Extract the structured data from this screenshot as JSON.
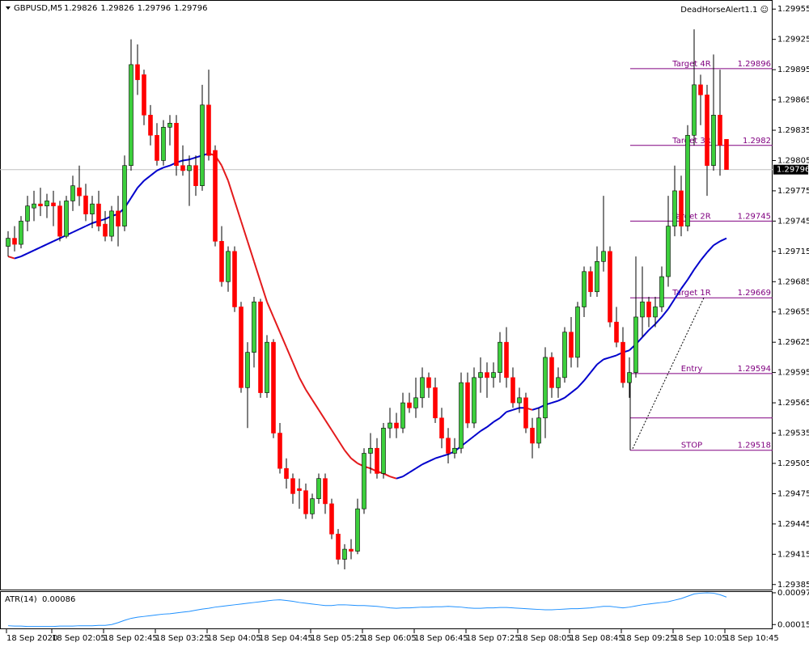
{
  "chart_data": {
    "type": "candlestick",
    "symbol": "GBPUSD,M5",
    "indicator_name": "DeadHorseAlert1.1 ☺",
    "categories": [
      "18 Sep 2020",
      null,
      null,
      null,
      null,
      null,
      null,
      "18 Sep 02:05",
      null,
      null,
      null,
      null,
      null,
      null,
      null,
      "18 Sep 02:45",
      null,
      null,
      null,
      null,
      null,
      null,
      null,
      "18 Sep 03:25",
      null,
      null,
      null,
      null,
      null,
      null,
      null,
      "18 Sep 04:05",
      null,
      null,
      null,
      null,
      null,
      null,
      null,
      "18 Sep 04:45",
      null,
      null,
      null,
      null,
      null,
      null,
      null,
      "18 Sep 05:25",
      null,
      null,
      null,
      null,
      null,
      null,
      null,
      "18 Sep 06:05",
      null,
      null,
      null,
      null,
      null,
      null,
      null,
      "18 Sep 06:45",
      null,
      null,
      null,
      null,
      null,
      null,
      null,
      "18 Sep 07:25",
      null,
      null,
      null,
      null,
      null,
      null,
      null,
      "18 Sep 08:05",
      null,
      null,
      null,
      null,
      null,
      null,
      null,
      "18 Sep 08:45",
      null,
      null,
      null,
      null,
      null,
      null,
      null,
      "18 Sep 09:25",
      null,
      null,
      null,
      null,
      null,
      null,
      null,
      "18 Sep 10:05",
      null,
      null,
      null,
      null,
      null,
      null,
      null,
      "18 Sep 10:45"
    ],
    "open": [
      1.2972,
      1.29728,
      1.29722,
      1.29745,
      1.29758,
      1.29762,
      1.2976,
      1.29763,
      1.2976,
      1.2973,
      1.29765,
      1.29778,
      1.2977,
      1.29752,
      1.29762,
      1.29742,
      1.2973,
      1.29755,
      1.2974,
      1.298,
      1.299,
      1.2989,
      1.2985,
      1.2983,
      1.29805,
      1.29838,
      1.29842,
      1.298,
      1.29795,
      1.298,
      1.2978,
      1.2986,
      1.29815,
      1.29725,
      1.29685,
      1.29715,
      1.2966,
      1.2958,
      1.29615,
      1.29665,
      1.29575,
      1.29625,
      1.29535,
      1.295,
      1.2949,
      1.2948,
      1.29478,
      1.29455,
      1.2947,
      1.2949,
      1.29465,
      1.29435,
      1.2941,
      1.2942,
      1.29418,
      1.2946,
      1.29515,
      1.2952,
      1.29495,
      1.2954,
      1.29545,
      1.2954,
      1.29565,
      1.2956,
      1.2957,
      1.2959,
      1.2958,
      1.2955,
      1.2953,
      1.29515,
      1.2952,
      1.29585,
      1.29545,
      1.2959,
      1.29595,
      1.2959,
      1.29595,
      1.29625,
      1.2959,
      1.29565,
      1.2957,
      1.2954,
      1.29525,
      1.2955,
      1.2961,
      1.2958,
      1.2959,
      1.29635,
      1.2961,
      1.2966,
      1.29695,
      1.29675,
      1.29705,
      1.29715,
      1.29645,
      1.29625,
      1.29585,
      1.29595,
      1.2965,
      1.29665,
      1.2965,
      1.2966,
      1.2969,
      1.2974,
      1.29775,
      1.2974,
      1.2983,
      1.2988,
      1.2987,
      1.298,
      1.2985,
      1.29826
    ],
    "high": [
      1.29735,
      1.2974,
      1.2975,
      1.2977,
      1.29775,
      1.29778,
      1.29772,
      1.29775,
      1.29765,
      1.2977,
      1.2979,
      1.298,
      1.29782,
      1.2977,
      1.29775,
      1.29755,
      1.2976,
      1.2977,
      1.2981,
      1.29925,
      1.2992,
      1.29895,
      1.2986,
      1.29842,
      1.29845,
      1.2985,
      1.2985,
      1.2982,
      1.2981,
      1.2981,
      1.2988,
      1.29895,
      1.2982,
      1.2974,
      1.2972,
      1.2972,
      1.29665,
      1.29625,
      1.2967,
      1.29668,
      1.29632,
      1.29628,
      1.29545,
      1.2951,
      1.29495,
      1.2949,
      1.29485,
      1.29475,
      1.29495,
      1.29495,
      1.2947,
      1.2944,
      1.29425,
      1.2943,
      1.2947,
      1.2952,
      1.29535,
      1.2953,
      1.29545,
      1.2956,
      1.29555,
      1.29575,
      1.29575,
      1.2959,
      1.296,
      1.29595,
      1.2959,
      1.2956,
      1.2954,
      1.2953,
      1.29595,
      1.29595,
      1.296,
      1.2961,
      1.29605,
      1.29605,
      1.29635,
      1.2964,
      1.296,
      1.2958,
      1.29575,
      1.2955,
      1.2956,
      1.2962,
      1.29615,
      1.296,
      1.2964,
      1.2965,
      1.29665,
      1.297,
      1.297,
      1.2972,
      1.2977,
      1.2972,
      1.2966,
      1.2964,
      1.2961,
      1.2971,
      1.297,
      1.2967,
      1.2967,
      1.297,
      1.2977,
      1.298,
      1.2979,
      1.2984,
      1.29935,
      1.2989,
      1.2988,
      1.2991,
      1.29895,
      1.29826
    ],
    "low": [
      1.2971,
      1.29715,
      1.29718,
      1.29735,
      1.29745,
      1.2975,
      1.29748,
      1.2974,
      1.29725,
      1.29728,
      1.29755,
      1.2976,
      1.29745,
      1.29738,
      1.29735,
      1.29725,
      1.29725,
      1.2972,
      1.29735,
      1.29795,
      1.2987,
      1.2984,
      1.2982,
      1.298,
      1.298,
      1.2982,
      1.2979,
      1.2979,
      1.2976,
      1.2977,
      1.29775,
      1.29805,
      1.2972,
      1.2968,
      1.29675,
      1.29655,
      1.29575,
      1.2954,
      1.296,
      1.2957,
      1.2957,
      1.2953,
      1.29495,
      1.2948,
      1.29465,
      1.2946,
      1.2945,
      1.2945,
      1.29465,
      1.29455,
      1.2943,
      1.29405,
      1.294,
      1.2941,
      1.29415,
      1.29455,
      1.29495,
      1.2949,
      1.2949,
      1.2953,
      1.2953,
      1.29535,
      1.29555,
      1.2955,
      1.2956,
      1.2957,
      1.29545,
      1.2952,
      1.29505,
      1.2951,
      1.29515,
      1.2954,
      1.2954,
      1.29575,
      1.2957,
      1.2958,
      1.29585,
      1.2958,
      1.2956,
      1.29555,
      1.29535,
      1.2951,
      1.2952,
      1.2953,
      1.2957,
      1.2957,
      1.29585,
      1.296,
      1.296,
      1.2965,
      1.2967,
      1.2967,
      1.29695,
      1.2964,
      1.2962,
      1.2958,
      1.2957,
      1.2959,
      1.2963,
      1.2964,
      1.2964,
      1.29655,
      1.2968,
      1.2973,
      1.2973,
      1.29735,
      1.2982,
      1.2984,
      1.2977,
      1.29795,
      1.2979,
      1.29796
    ],
    "close": [
      1.29728,
      1.29722,
      1.29745,
      1.2976,
      1.29762,
      1.2976,
      1.29765,
      1.2976,
      1.2973,
      1.29765,
      1.2978,
      1.2977,
      1.29752,
      1.29762,
      1.2974,
      1.2973,
      1.29755,
      1.2974,
      1.298,
      1.299,
      1.29885,
      1.2985,
      1.2983,
      1.29805,
      1.29838,
      1.29842,
      1.298,
      1.29795,
      1.298,
      1.2978,
      1.2986,
      1.2981,
      1.29725,
      1.29685,
      1.29715,
      1.2966,
      1.2958,
      1.29615,
      1.29665,
      1.29575,
      1.29625,
      1.29535,
      1.295,
      1.2949,
      1.29475,
      1.29478,
      1.29455,
      1.2947,
      1.2949,
      1.29465,
      1.29435,
      1.2941,
      1.2942,
      1.29418,
      1.2946,
      1.29515,
      1.2952,
      1.29495,
      1.2954,
      1.29545,
      1.2954,
      1.29565,
      1.2956,
      1.2957,
      1.2959,
      1.2958,
      1.2955,
      1.2953,
      1.29515,
      1.2952,
      1.29585,
      1.29545,
      1.2959,
      1.29595,
      1.2959,
      1.29595,
      1.29625,
      1.2959,
      1.29565,
      1.2957,
      1.2954,
      1.29525,
      1.2955,
      1.2961,
      1.2958,
      1.2959,
      1.29635,
      1.2961,
      1.2966,
      1.29695,
      1.29675,
      1.29705,
      1.29715,
      1.29645,
      1.29625,
      1.29585,
      1.29595,
      1.2965,
      1.29665,
      1.2965,
      1.2966,
      1.2969,
      1.2974,
      1.29775,
      1.2974,
      1.2983,
      1.2988,
      1.2987,
      1.298,
      1.2985,
      1.2982,
      1.29796
    ],
    "up_color": "#3ccf3c",
    "down_color": "#ff0000",
    "ma": {
      "up_color": "#0000cc",
      "down_color": "#e31a1c",
      "values": [
        1.2971,
        1.29708,
        1.2971,
        1.29713,
        1.29716,
        1.29719,
        1.29722,
        1.29725,
        1.29728,
        1.29731,
        1.29734,
        1.29737,
        1.2974,
        1.29743,
        1.29745,
        1.29747,
        1.2975,
        1.29752,
        1.29758,
        1.29768,
        1.29778,
        1.29785,
        1.2979,
        1.29795,
        1.29798,
        1.298,
        1.29803,
        1.29805,
        1.29806,
        1.29808,
        1.2981,
        1.29812,
        1.2981,
        1.298,
        1.29785,
        1.29765,
        1.29745,
        1.29725,
        1.29705,
        1.29685,
        1.29665,
        1.2965,
        1.29635,
        1.2962,
        1.29605,
        1.2959,
        1.29578,
        1.29568,
        1.29558,
        1.29548,
        1.29538,
        1.29528,
        1.29518,
        1.2951,
        1.29505,
        1.29502,
        1.295,
        1.29497,
        1.29495,
        1.29492,
        1.2949,
        1.29492,
        1.29496,
        1.295,
        1.29504,
        1.29507,
        1.2951,
        1.29512,
        1.29514,
        1.29517,
        1.29522,
        1.29527,
        1.29532,
        1.29537,
        1.29541,
        1.29546,
        1.2955,
        1.29556,
        1.29558,
        1.2956,
        1.2956,
        1.29558,
        1.2956,
        1.29563,
        1.29565,
        1.29567,
        1.2957,
        1.29575,
        1.2958,
        1.29587,
        1.29595,
        1.29603,
        1.29608,
        1.2961,
        1.29612,
        1.29615,
        1.29617,
        1.29623,
        1.2963,
        1.29637,
        1.29643,
        1.2965,
        1.29658,
        1.29668,
        1.29678,
        1.29687,
        1.29697,
        1.29706,
        1.29714,
        1.29721,
        1.29725,
        1.29728
      ]
    },
    "ylim": [
      1.2938,
      1.29964
    ],
    "yticks": [
      1.29955,
      1.29925,
      1.29895,
      1.29865,
      1.29835,
      1.29805,
      1.29775,
      1.29745,
      1.29715,
      1.29685,
      1.29655,
      1.29625,
      1.29595,
      1.29565,
      1.29535,
      1.29505,
      1.29475,
      1.29445,
      1.29415,
      1.29385
    ],
    "levels_color": "#800080",
    "levels": [
      {
        "label": "Target 4R",
        "value": 1.29896
      },
      {
        "label": "Target 3R",
        "value": 1.2982
      },
      {
        "label": "Target 2R",
        "value": 1.29745
      },
      {
        "label": "Target 1R",
        "value": 1.29669
      },
      {
        "label": "Entry",
        "value": 1.29594
      },
      {
        "value": 1.2955
      },
      {
        "label": "STOP",
        "value": 1.29518
      }
    ],
    "atr": {
      "name": "ATR(14)",
      "color": "#1e90ff",
      "ylim": [
        3e-05,
        0.00099
      ],
      "yticks": [
        0.00097,
        0.00015
      ],
      "values": [
        0.00012,
        0.00011,
        0.00011,
        0.0001,
        0.0001,
        0.0001,
        0.0001,
        0.0001,
        0.00011,
        0.00011,
        0.00011,
        0.00012,
        0.00012,
        0.00012,
        0.00013,
        0.00013,
        0.00015,
        0.0002,
        0.00026,
        0.00031,
        0.00034,
        0.00036,
        0.00038,
        0.0004,
        0.00042,
        0.00043,
        0.00045,
        0.00047,
        0.00049,
        0.00052,
        0.00055,
        0.00057,
        0.0006,
        0.00062,
        0.00064,
        0.00066,
        0.00068,
        0.0007,
        0.00072,
        0.00074,
        0.00076,
        0.00078,
        0.00079,
        0.00077,
        0.00075,
        0.00072,
        0.0007,
        0.00068,
        0.00066,
        0.00064,
        0.00064,
        0.00066,
        0.00066,
        0.00065,
        0.00064,
        0.00064,
        0.00063,
        0.00062,
        0.0006,
        0.00058,
        0.00057,
        0.00058,
        0.00058,
        0.00059,
        0.0006,
        0.0006,
        0.00061,
        0.00061,
        0.00062,
        0.00061,
        0.0006,
        0.00058,
        0.00057,
        0.00057,
        0.00058,
        0.00058,
        0.00059,
        0.00059,
        0.00058,
        0.00057,
        0.00056,
        0.00055,
        0.00054,
        0.00053,
        0.00053,
        0.00054,
        0.00055,
        0.00056,
        0.00056,
        0.00057,
        0.00058,
        0.0006,
        0.00062,
        0.00062,
        0.0006,
        0.00058,
        0.0006,
        0.00063,
        0.00066,
        0.00068,
        0.0007,
        0.00072,
        0.00074,
        0.00078,
        0.00082,
        0.00088,
        0.00094,
        0.00096,
        0.00097,
        0.00096,
        0.00092,
        0.00086
      ]
    }
  }
}
